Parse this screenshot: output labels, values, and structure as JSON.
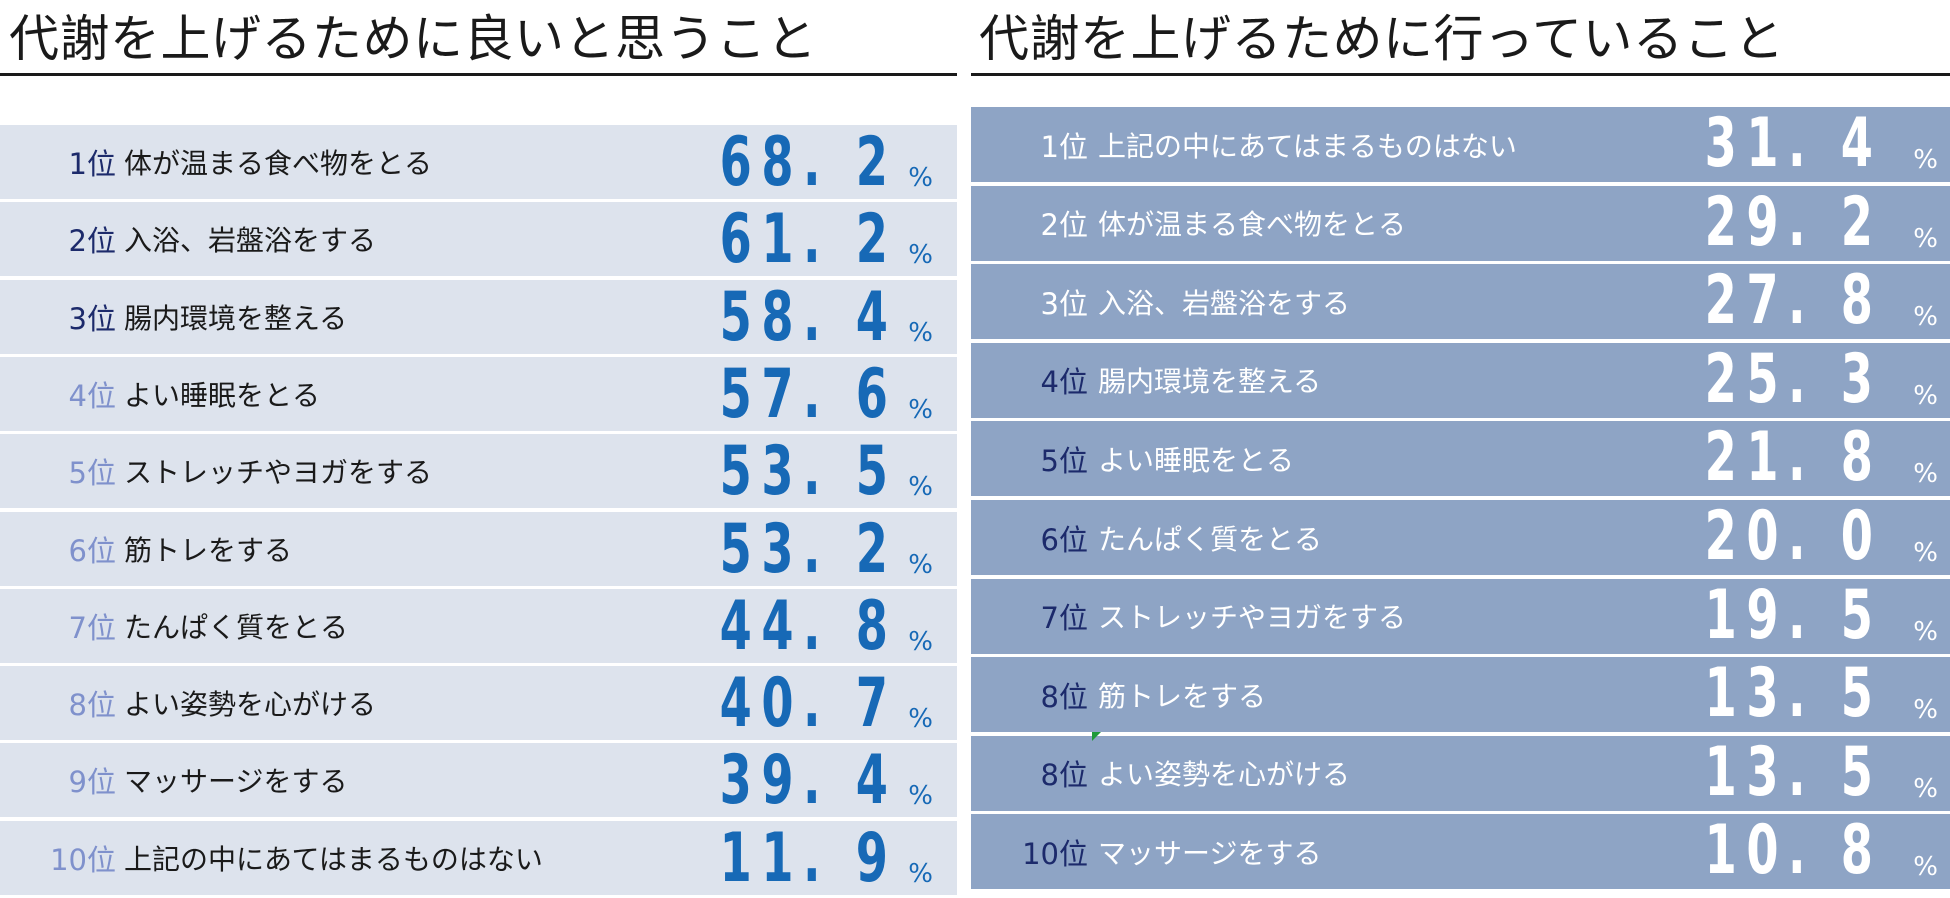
{
  "colors": {
    "left_row_bg": "#dde3ed",
    "right_row_bg": "#8ea4c5",
    "value_blue": "#1769b6",
    "rank_dark": "#1c2a6b",
    "rank_light": "#7f91cc",
    "rank_on_blue": "#ffffff"
  },
  "chart_data": [
    {
      "type": "table",
      "title": "代謝を上げるために良いと思うこと",
      "unit": "%",
      "rows": [
        {
          "rank": "1位",
          "label": "体が温まる食べ物をとる",
          "value": "68.2",
          "rank_color": "#1c2a6b"
        },
        {
          "rank": "2位",
          "label": "入浴、岩盤浴をする",
          "value": "61.2",
          "rank_color": "#1c2a6b"
        },
        {
          "rank": "3位",
          "label": "腸内環境を整える",
          "value": "58.4",
          "rank_color": "#1c2a6b"
        },
        {
          "rank": "4位",
          "label": "よい睡眠をとる",
          "value": "57.6",
          "rank_color": "#7f91cc"
        },
        {
          "rank": "5位",
          "label": "ストレッチやヨガをする",
          "value": "53.5",
          "rank_color": "#7f91cc"
        },
        {
          "rank": "6位",
          "label": "筋トレをする",
          "value": "53.2",
          "rank_color": "#7f91cc"
        },
        {
          "rank": "7位",
          "label": "たんぱく質をとる",
          "value": "44.8",
          "rank_color": "#7f91cc"
        },
        {
          "rank": "8位",
          "label": "よい姿勢を心がける",
          "value": "40.7",
          "rank_color": "#7f91cc"
        },
        {
          "rank": "9位",
          "label": "マッサージをする",
          "value": "39.4",
          "rank_color": "#7f91cc"
        },
        {
          "rank": "10位",
          "label": "上記の中にあてはまるものはない",
          "value": "11.9",
          "rank_color": "#7f91cc"
        }
      ]
    },
    {
      "type": "table",
      "title": "代謝を上げるために行っていること",
      "unit": "%",
      "rows": [
        {
          "rank": "1位",
          "label": "上記の中にあてはまるものはない",
          "value": "31.4",
          "rank_color": "#ffffff"
        },
        {
          "rank": "2位",
          "label": "体が温まる食べ物をとる",
          "value": "29.2",
          "rank_color": "#ffffff"
        },
        {
          "rank": "3位",
          "label": "入浴、岩盤浴をする",
          "value": "27.8",
          "rank_color": "#ffffff"
        },
        {
          "rank": "4位",
          "label": "腸内環境を整える",
          "value": "25.3",
          "rank_color": "#1c2a6b"
        },
        {
          "rank": "5位",
          "label": "よい睡眠をとる",
          "value": "21.8",
          "rank_color": "#1c2a6b"
        },
        {
          "rank": "6位",
          "label": "たんぱく質をとる",
          "value": "20.0",
          "rank_color": "#1c2a6b"
        },
        {
          "rank": "7位",
          "label": "ストレッチやヨガをする",
          "value": "19.5",
          "rank_color": "#1c2a6b"
        },
        {
          "rank": "8位",
          "label": "筋トレをする",
          "value": "13.5",
          "rank_color": "#1c2a6b"
        },
        {
          "rank": "8位",
          "label": "よい姿勢を心がける",
          "value": "13.5",
          "rank_color": "#1c2a6b"
        },
        {
          "rank": "10位",
          "label": "マッサージをする",
          "value": "10.8",
          "rank_color": "#1c2a6b"
        }
      ]
    }
  ]
}
